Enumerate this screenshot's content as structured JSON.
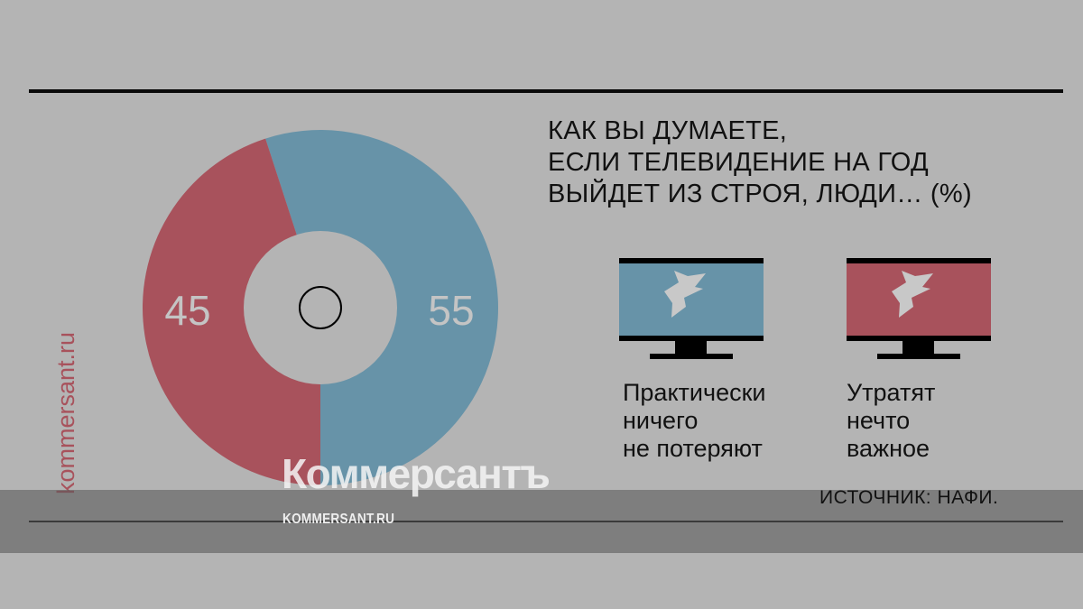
{
  "chart_data": {
    "type": "pie",
    "title": "КАК ВЫ ДУМАЕТЕ,\nЕСЛИ ТЕЛЕВИДЕНИЕ НА ГОД\nВЫЙДЕТ ИЗ СТРОЯ, ЛЮДИ… (%)",
    "donut": true,
    "categories": [
      "Практически\nничего\nне потеряют",
      "Утратят\nнечто\nважное"
    ],
    "values": [
      55,
      45
    ],
    "data_labels": [
      "55",
      "45"
    ],
    "colors": [
      "#6793a8",
      "#a8525c"
    ],
    "legend_placement": "right",
    "source": "ИСТОЧНИК: НАФИ."
  },
  "watermark": {
    "side": "kommersant.ru",
    "logo": "Коммерсантъ",
    "url": "KOMMERSANT.RU"
  },
  "background": "#b4b4b4"
}
